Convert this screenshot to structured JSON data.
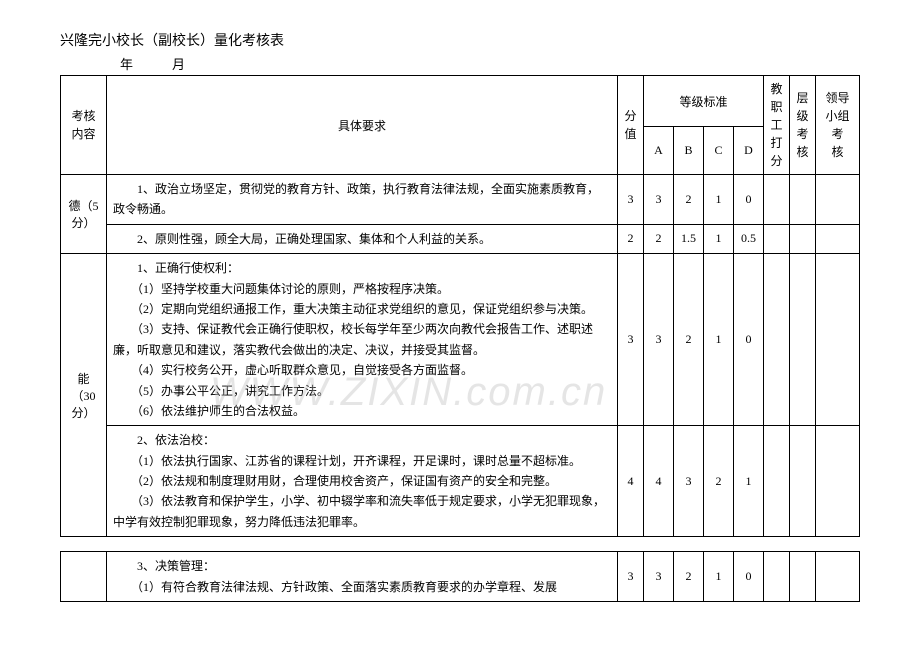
{
  "doc": {
    "title": "兴隆完小校长（副校长）量化考核表",
    "subtitle": "年　　　月"
  },
  "header": {
    "category": "考核内容",
    "requirement": "具体要求",
    "score": "分值",
    "grade_group": "等级标准",
    "grades": {
      "a": "A",
      "b": "B",
      "c": "C",
      "d": "D"
    },
    "staff": "教职工打分",
    "level": "层级考核",
    "leader": "领导小组考　核"
  },
  "rows": {
    "de": {
      "cat": "德（5分）",
      "r1": {
        "text": "　　1、政治立场坚定，贯彻党的教育方针、政策，执行教育法律法规，全面实施素质教育，政令畅通。",
        "score": "3",
        "a": "3",
        "b": "2",
        "c": "1",
        "d": "0"
      },
      "r2": {
        "text": "　　2、原则性强，顾全大局，正确处理国家、集体和个人利益的关系。",
        "score": "2",
        "a": "2",
        "b": "1.5",
        "c": "1",
        "d": "0.5"
      }
    },
    "neng": {
      "cat": "能（30分）",
      "r1": {
        "lines": {
          "l0": "　　1、正确行使权利：",
          "l1": "　　（1）坚持学校重大问题集体讨论的原则，严格按程序决策。",
          "l2": "　　（2）定期向党组织通报工作，重大决策主动征求党组织的意见，保证党组织参与决策。",
          "l3": "　　（3）支持、保证教代会正确行使职权，校长每学年至少两次向教代会报告工作、述职述廉，听取意见和建议，落实教代会做出的决定、决议，并接受其监督。",
          "l4": "　　（4）实行校务公开，虚心听取群众意见，自觉接受各方面监督。",
          "l5": "　　（5）办事公平公正，讲究工作方法。",
          "l6": "　　（6）依法维护师生的合法权益。"
        },
        "score": "3",
        "a": "3",
        "b": "2",
        "c": "1",
        "d": "0"
      },
      "r2": {
        "lines": {
          "l0": "　　2、依法治校：",
          "l1": "　　（1）依法执行国家、江苏省的课程计划，开齐课程，开足课时，课时总量不超标准。",
          "l2": "　　（2）依法规和制度理财用财，合理使用校舍资产，保证国有资产的安全和完整。",
          "l3": "　　（3）依法教育和保护学生，小学、初中辍学率和流失率低于规定要求，小学无犯罪现象，中学有效控制犯罪现象，努力降低违法犯罪率。"
        },
        "score": "4",
        "a": "4",
        "b": "3",
        "c": "2",
        "d": "1"
      }
    },
    "sep": {
      "r1": {
        "lines": {
          "l0": "　　3、决策管理：",
          "l1": "　　（1）有符合教育法律法规、方针政策、全面落实素质教育要求的办学章程、发展"
        },
        "score": "3",
        "a": "3",
        "b": "2",
        "c": "1",
        "d": "0"
      }
    }
  },
  "watermark": {
    "t1": "WWW",
    "t2": "ZIXIN",
    "t3": "com.cn"
  }
}
